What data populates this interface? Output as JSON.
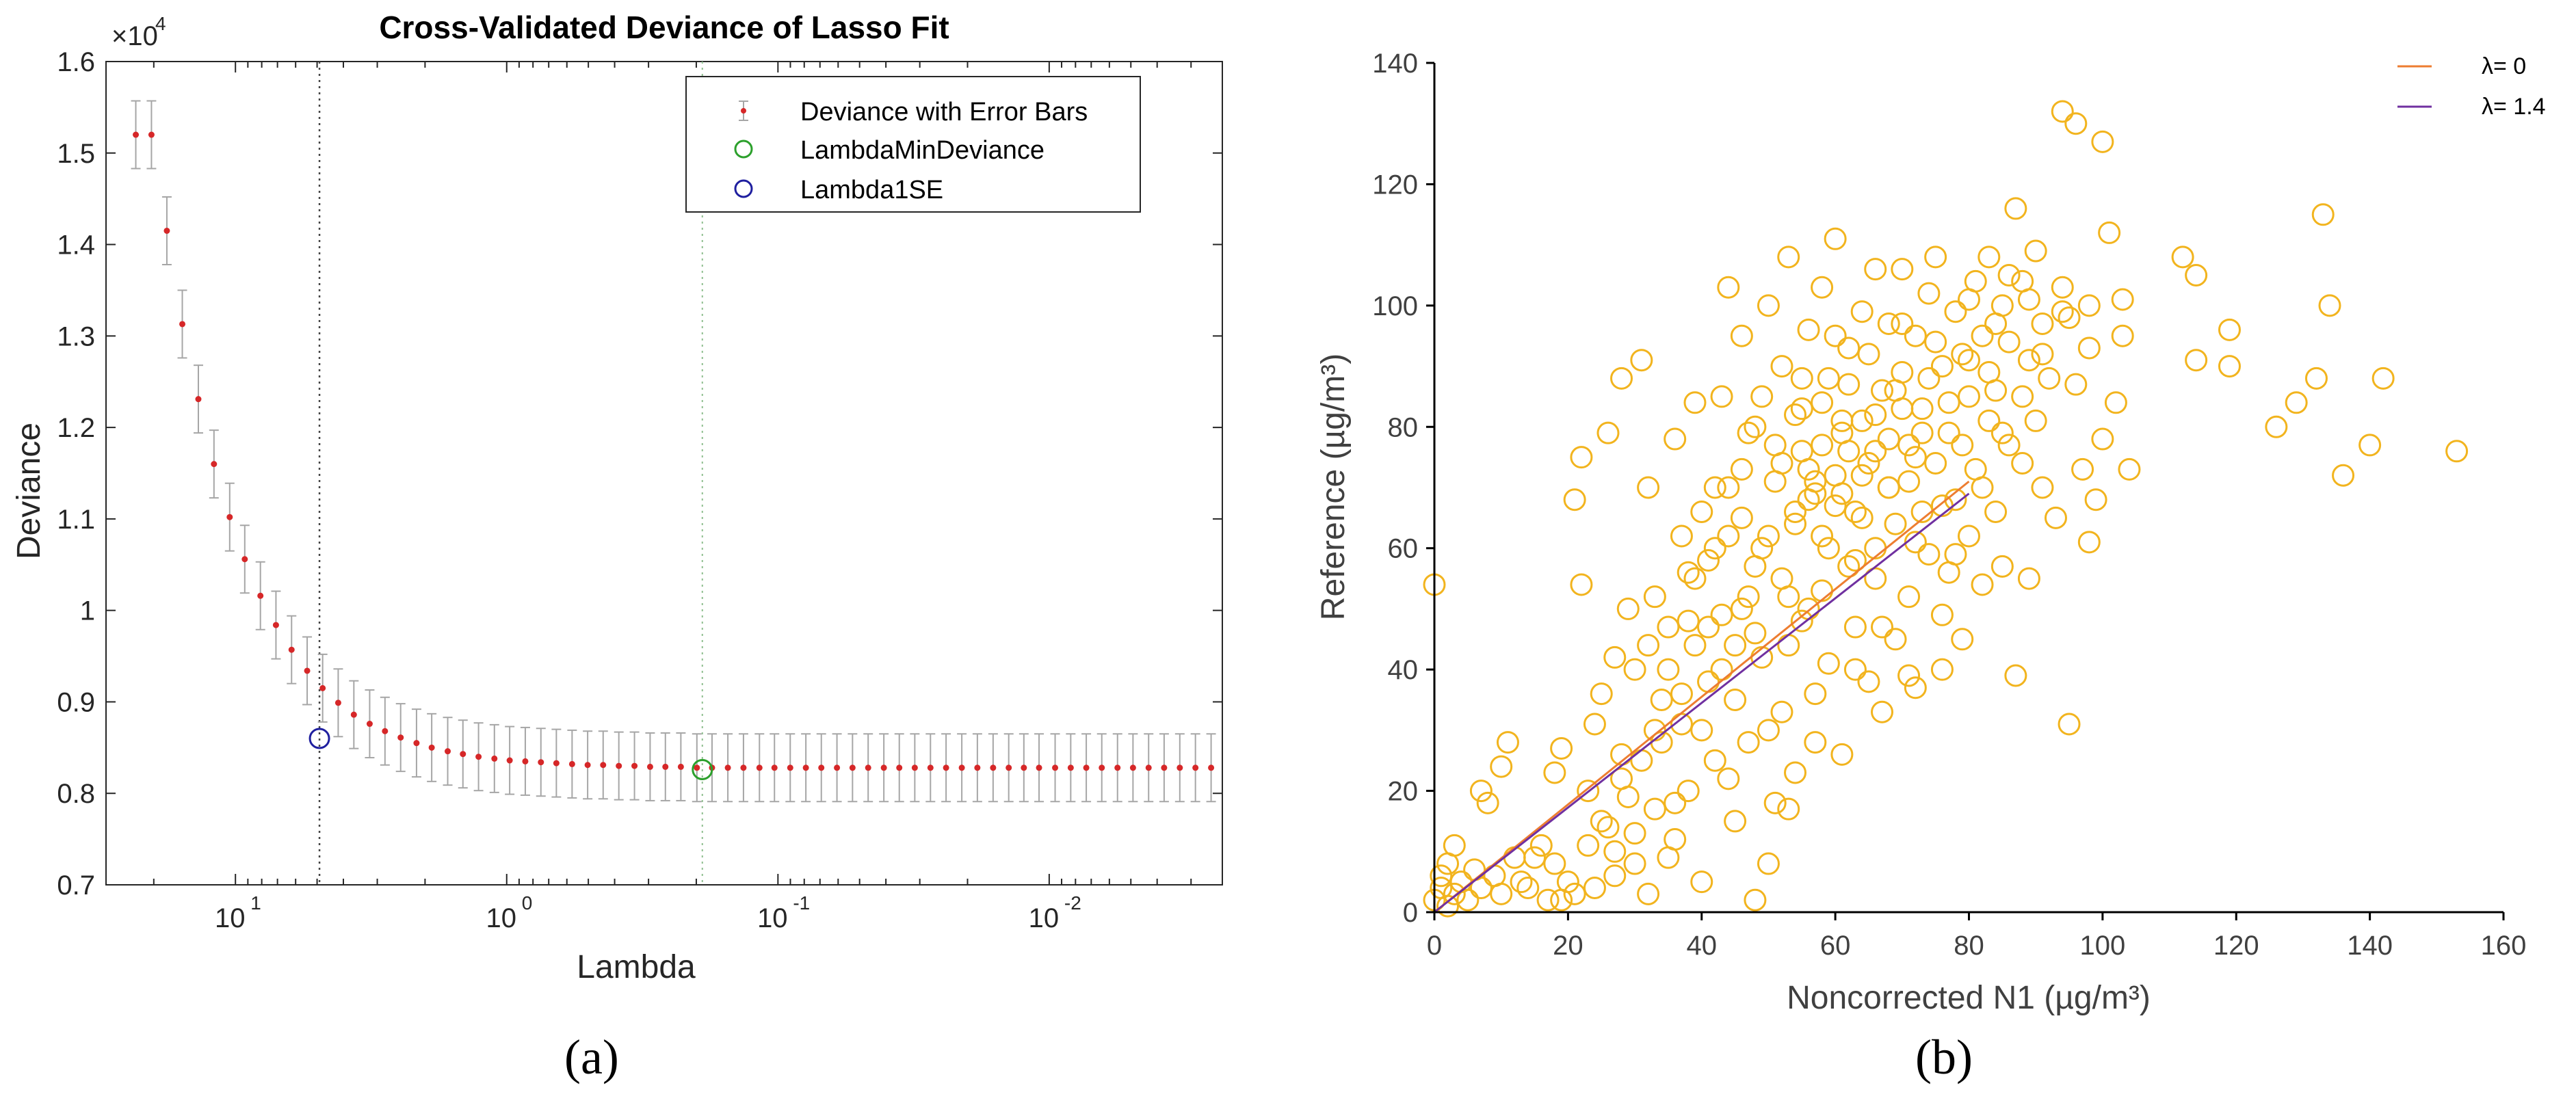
{
  "chart_data": [
    {
      "type": "errorbar",
      "panel_label": "(a)",
      "title": "Cross-Validated Deviance of Lasso Fit",
      "xlabel": "Lambda",
      "ylabel": "Deviance",
      "xscale": "log-reversed",
      "y_exponent_label": "×10",
      "y_exponent_power": "4",
      "xlim": [
        0.0023,
        30
      ],
      "ylim": [
        0.7,
        1.6
      ],
      "yticks": [
        "0.7",
        "0.8",
        "0.9",
        "1",
        "1.1",
        "1.2",
        "1.3",
        "1.4",
        "1.5",
        "1.6"
      ],
      "ytick_values": [
        0.7,
        0.8,
        0.9,
        1.0,
        1.1,
        1.2,
        1.3,
        1.4,
        1.5,
        1.6
      ],
      "xticks": [
        {
          "value": 10,
          "base": "10",
          "exp": "1"
        },
        {
          "value": 1,
          "base": "10",
          "exp": "0"
        },
        {
          "value": 0.1,
          "base": "10",
          "exp": "-1"
        },
        {
          "value": 0.01,
          "base": "10",
          "exp": "-2"
        }
      ],
      "legend": [
        "Deviance with Error Bars",
        "LambdaMinDeviance",
        "Lambda1SE"
      ],
      "legend_position": "top-right",
      "lambda_1se": 4.9,
      "lambda_min_deviance": 0.19,
      "deviance_at_1se": 0.86,
      "deviance_at_min": 0.826,
      "series_lambda": [
        23.3,
        20.4,
        17.9,
        15.7,
        13.7,
        12.0,
        10.5,
        9.24,
        8.09,
        7.09,
        6.21,
        5.44,
        4.77,
        4.18,
        3.66,
        3.2,
        2.81,
        2.46,
        2.15,
        1.89,
        1.65,
        1.45,
        1.27,
        1.11,
        0.975,
        0.854,
        0.748,
        0.656,
        0.574,
        0.503,
        0.441,
        0.386,
        0.338,
        0.296,
        0.26,
        0.228,
        0.199,
        0.175,
        0.153,
        0.134,
        0.117,
        0.103,
        0.0901,
        0.0789,
        0.0692,
        0.0606,
        0.0531,
        0.0465,
        0.0407,
        0.0357,
        0.0313,
        0.0274,
        0.024,
        0.021,
        0.0184,
        0.0161,
        0.0141,
        0.0124,
        0.0109,
        0.00951,
        0.00833,
        0.0073,
        0.0064,
        0.0056,
        0.00491,
        0.0043,
        0.00377,
        0.0033,
        0.00289,
        0.00253
      ],
      "series_deviance": [
        1.52,
        1.52,
        1.415,
        1.313,
        1.231,
        1.16,
        1.102,
        1.056,
        1.016,
        0.984,
        0.957,
        0.934,
        0.915,
        0.899,
        0.886,
        0.876,
        0.868,
        0.861,
        0.855,
        0.85,
        0.846,
        0.843,
        0.84,
        0.838,
        0.836,
        0.835,
        0.834,
        0.833,
        0.832,
        0.831,
        0.831,
        0.83,
        0.83,
        0.829,
        0.829,
        0.829,
        0.828,
        0.828,
        0.828,
        0.828,
        0.828,
        0.828,
        0.828,
        0.828,
        0.828,
        0.828,
        0.828,
        0.828,
        0.828,
        0.828,
        0.828,
        0.828,
        0.828,
        0.828,
        0.828,
        0.828,
        0.828,
        0.828,
        0.828,
        0.828,
        0.828,
        0.828,
        0.828,
        0.828,
        0.828,
        0.828,
        0.828,
        0.828,
        0.828,
        0.828
      ],
      "error_half_width": 0.037
    },
    {
      "type": "scatter",
      "panel_label": "(b)",
      "xlabel": "Noncorrected N1 (µg/m³)",
      "ylabel": "Reference (µg/m³)",
      "xlim": [
        0,
        160
      ],
      "ylim": [
        0,
        140
      ],
      "xticks": [
        "0",
        "20",
        "40",
        "60",
        "80",
        "100",
        "120",
        "140",
        "160"
      ],
      "xtick_values": [
        0,
        20,
        40,
        60,
        80,
        100,
        120,
        140,
        160
      ],
      "yticks": [
        "0",
        "20",
        "40",
        "60",
        "80",
        "100",
        "120",
        "140"
      ],
      "ytick_values": [
        0,
        20,
        40,
        60,
        80,
        100,
        120,
        140
      ],
      "legend_position": "top-right",
      "lines": [
        {
          "name": "λ= 0",
          "x": [
            0,
            80
          ],
          "y": [
            0,
            71
          ],
          "color": "#ed7d31"
        },
        {
          "name": "λ= 1.4",
          "x": [
            0,
            80
          ],
          "y": [
            0,
            69
          ],
          "color": "#7030a0"
        }
      ],
      "marker_color": "#f2b41e",
      "points": [
        [
          0,
          54
        ],
        [
          0,
          2
        ],
        [
          1,
          4
        ],
        [
          1,
          6
        ],
        [
          2,
          1
        ],
        [
          2,
          8
        ],
        [
          3,
          3
        ],
        [
          3,
          11
        ],
        [
          4,
          5
        ],
        [
          5,
          2
        ],
        [
          6,
          7
        ],
        [
          7,
          20
        ],
        [
          7,
          4
        ],
        [
          8,
          18
        ],
        [
          9,
          6
        ],
        [
          10,
          3
        ],
        [
          10,
          24
        ],
        [
          11,
          28
        ],
        [
          12,
          9
        ],
        [
          13,
          5
        ],
        [
          14,
          4
        ],
        [
          15,
          9
        ],
        [
          16,
          11
        ],
        [
          17,
          2
        ],
        [
          18,
          23
        ],
        [
          18,
          8
        ],
        [
          19,
          27
        ],
        [
          19,
          2
        ],
        [
          20,
          5
        ],
        [
          21,
          3
        ],
        [
          21,
          68
        ],
        [
          22,
          54
        ],
        [
          22,
          75
        ],
        [
          23,
          20
        ],
        [
          23,
          11
        ],
        [
          24,
          31
        ],
        [
          25,
          36
        ],
        [
          25,
          15
        ],
        [
          26,
          79
        ],
        [
          27,
          6
        ],
        [
          27,
          42
        ],
        [
          28,
          22
        ],
        [
          28,
          88
        ],
        [
          29,
          50
        ],
        [
          30,
          13
        ],
        [
          30,
          40
        ],
        [
          31,
          91
        ],
        [
          31,
          25
        ],
        [
          32,
          70
        ],
        [
          32,
          3
        ],
        [
          33,
          52
        ],
        [
          33,
          17
        ],
        [
          34,
          35
        ],
        [
          34,
          28
        ],
        [
          35,
          47
        ],
        [
          35,
          9
        ],
        [
          36,
          12
        ],
        [
          36,
          78
        ],
        [
          37,
          31
        ],
        [
          37,
          62
        ],
        [
          38,
          56
        ],
        [
          38,
          20
        ],
        [
          39,
          84
        ],
        [
          39,
          44
        ],
        [
          40,
          66
        ],
        [
          40,
          5
        ],
        [
          41,
          58
        ],
        [
          41,
          38
        ],
        [
          42,
          70
        ],
        [
          42,
          25
        ],
        [
          43,
          85
        ],
        [
          43,
          49
        ],
        [
          44,
          103
        ],
        [
          44,
          62
        ],
        [
          45,
          15
        ],
        [
          45,
          35
        ],
        [
          46,
          95
        ],
        [
          46,
          73
        ],
        [
          47,
          52
        ],
        [
          47,
          28
        ],
        [
          48,
          80
        ],
        [
          48,
          2
        ],
        [
          49,
          60
        ],
        [
          49,
          42
        ],
        [
          50,
          100
        ],
        [
          50,
          30
        ],
        [
          51,
          71
        ],
        [
          51,
          18
        ],
        [
          52,
          90
        ],
        [
          52,
          55
        ],
        [
          53,
          108
        ],
        [
          53,
          44
        ],
        [
          54,
          64
        ],
        [
          54,
          23
        ],
        [
          55,
          83
        ],
        [
          55,
          76
        ],
        [
          56,
          96
        ],
        [
          56,
          50
        ],
        [
          57,
          69
        ],
        [
          57,
          36
        ],
        [
          58,
          103
        ],
        [
          58,
          62
        ],
        [
          59,
          88
        ],
        [
          59,
          41
        ],
        [
          60,
          111
        ],
        [
          60,
          72
        ],
        [
          61,
          79
        ],
        [
          61,
          26
        ],
        [
          62,
          93
        ],
        [
          62,
          57
        ],
        [
          63,
          66
        ],
        [
          63,
          47
        ],
        [
          64,
          99
        ],
        [
          64,
          81
        ],
        [
          65,
          74
        ],
        [
          65,
          38
        ],
        [
          66,
          106
        ],
        [
          66,
          60
        ],
        [
          67,
          86
        ],
        [
          67,
          33
        ],
        [
          68,
          97
        ],
        [
          68,
          70
        ],
        [
          69,
          64
        ],
        [
          69,
          45
        ],
        [
          70,
          106
        ],
        [
          70,
          89
        ],
        [
          71,
          77
        ],
        [
          71,
          52
        ],
        [
          72,
          95
        ],
        [
          72,
          37
        ],
        [
          73,
          83
        ],
        [
          73,
          66
        ],
        [
          74,
          102
        ],
        [
          74,
          59
        ],
        [
          75,
          108
        ],
        [
          75,
          74
        ],
        [
          76,
          90
        ],
        [
          76,
          40
        ],
        [
          77,
          79
        ],
        [
          77,
          56
        ],
        [
          78,
          99
        ],
        [
          78,
          68
        ],
        [
          79,
          92
        ],
        [
          79,
          45
        ],
        [
          80,
          85
        ],
        [
          80,
          62
        ],
        [
          81,
          104
        ],
        [
          81,
          73
        ],
        [
          82,
          95
        ],
        [
          82,
          54
        ],
        [
          83,
          108
        ],
        [
          83,
          81
        ],
        [
          84,
          86
        ],
        [
          84,
          66
        ],
        [
          85,
          100
        ],
        [
          85,
          57
        ],
        [
          86,
          77
        ],
        [
          86,
          94
        ],
        [
          87,
          116
        ],
        [
          87,
          39
        ],
        [
          88,
          104
        ],
        [
          88,
          74
        ],
        [
          89,
          91
        ],
        [
          89,
          55
        ],
        [
          90,
          81
        ],
        [
          90,
          109
        ],
        [
          91,
          97
        ],
        [
          91,
          70
        ],
        [
          92,
          88
        ],
        [
          93,
          65
        ],
        [
          94,
          103
        ],
        [
          94,
          132
        ],
        [
          95,
          98
        ],
        [
          95,
          31
        ],
        [
          96,
          130
        ],
        [
          96,
          87
        ],
        [
          97,
          73
        ],
        [
          98,
          93
        ],
        [
          98,
          61
        ],
        [
          99,
          68
        ],
        [
          100,
          127
        ],
        [
          100,
          78
        ],
        [
          101,
          112
        ],
        [
          102,
          84
        ],
        [
          103,
          101
        ],
        [
          103,
          95
        ],
        [
          104,
          73
        ],
        [
          112,
          108
        ],
        [
          114,
          105
        ],
        [
          114,
          91
        ],
        [
          119,
          96
        ],
        [
          119,
          90
        ],
        [
          126,
          80
        ],
        [
          129,
          84
        ],
        [
          132,
          88
        ],
        [
          133,
          115
        ],
        [
          134,
          100
        ],
        [
          136,
          72
        ],
        [
          140,
          77
        ],
        [
          142,
          88
        ],
        [
          153,
          76
        ],
        [
          50,
          62
        ],
        [
          55,
          48
        ],
        [
          60,
          67
        ],
        [
          45,
          44
        ],
        [
          58,
          77
        ],
        [
          64,
          72
        ],
        [
          70,
          83
        ],
        [
          66,
          55
        ],
        [
          52,
          33
        ],
        [
          48,
          57
        ],
        [
          42,
          60
        ],
        [
          38,
          48
        ],
        [
          62,
          87
        ],
        [
          68,
          78
        ],
        [
          74,
          88
        ],
        [
          72,
          61
        ],
        [
          54,
          82
        ],
        [
          56,
          68
        ],
        [
          46,
          65
        ],
        [
          40,
          30
        ],
        [
          36,
          18
        ],
        [
          30,
          8
        ],
        [
          26,
          14
        ],
        [
          24,
          4
        ],
        [
          32,
          44
        ],
        [
          28,
          26
        ],
        [
          44,
          22
        ],
        [
          50,
          8
        ],
        [
          53,
          17
        ],
        [
          57,
          28
        ],
        [
          63,
          40
        ],
        [
          67,
          47
        ],
        [
          71,
          39
        ],
        [
          76,
          49
        ],
        [
          78,
          59
        ],
        [
          82,
          70
        ],
        [
          85,
          79
        ],
        [
          88,
          85
        ],
        [
          91,
          92
        ],
        [
          94,
          99
        ],
        [
          98,
          100
        ],
        [
          62,
          76
        ],
        [
          58,
          84
        ],
        [
          52,
          74
        ],
        [
          47,
          79
        ],
        [
          44,
          70
        ],
        [
          39,
          55
        ],
        [
          35,
          40
        ],
        [
          33,
          30
        ],
        [
          29,
          19
        ],
        [
          27,
          10
        ],
        [
          60,
          95
        ],
        [
          65,
          92
        ],
        [
          70,
          97
        ],
        [
          75,
          94
        ],
        [
          80,
          101
        ],
        [
          84,
          97
        ],
        [
          86,
          105
        ],
        [
          89,
          101
        ],
        [
          57,
          71
        ],
        [
          61,
          81
        ],
        [
          66,
          76
        ],
        [
          69,
          86
        ],
        [
          73,
          79
        ],
        [
          77,
          84
        ],
        [
          80,
          91
        ],
        [
          83,
          89
        ],
        [
          54,
          66
        ],
        [
          59,
          60
        ],
        [
          64,
          65
        ],
        [
          68,
          70
        ],
        [
          72,
          75
        ],
        [
          76,
          67
        ],
        [
          79,
          77
        ],
        [
          55,
          88
        ],
        [
          49,
          85
        ],
        [
          51,
          77
        ],
        [
          56,
          73
        ],
        [
          61,
          69
        ],
        [
          66,
          82
        ],
        [
          71,
          71
        ],
        [
          46,
          50
        ],
        [
          41,
          47
        ],
        [
          37,
          36
        ],
        [
          43,
          40
        ],
        [
          48,
          46
        ],
        [
          53,
          52
        ],
        [
          58,
          53
        ],
        [
          63,
          58
        ]
      ]
    }
  ]
}
